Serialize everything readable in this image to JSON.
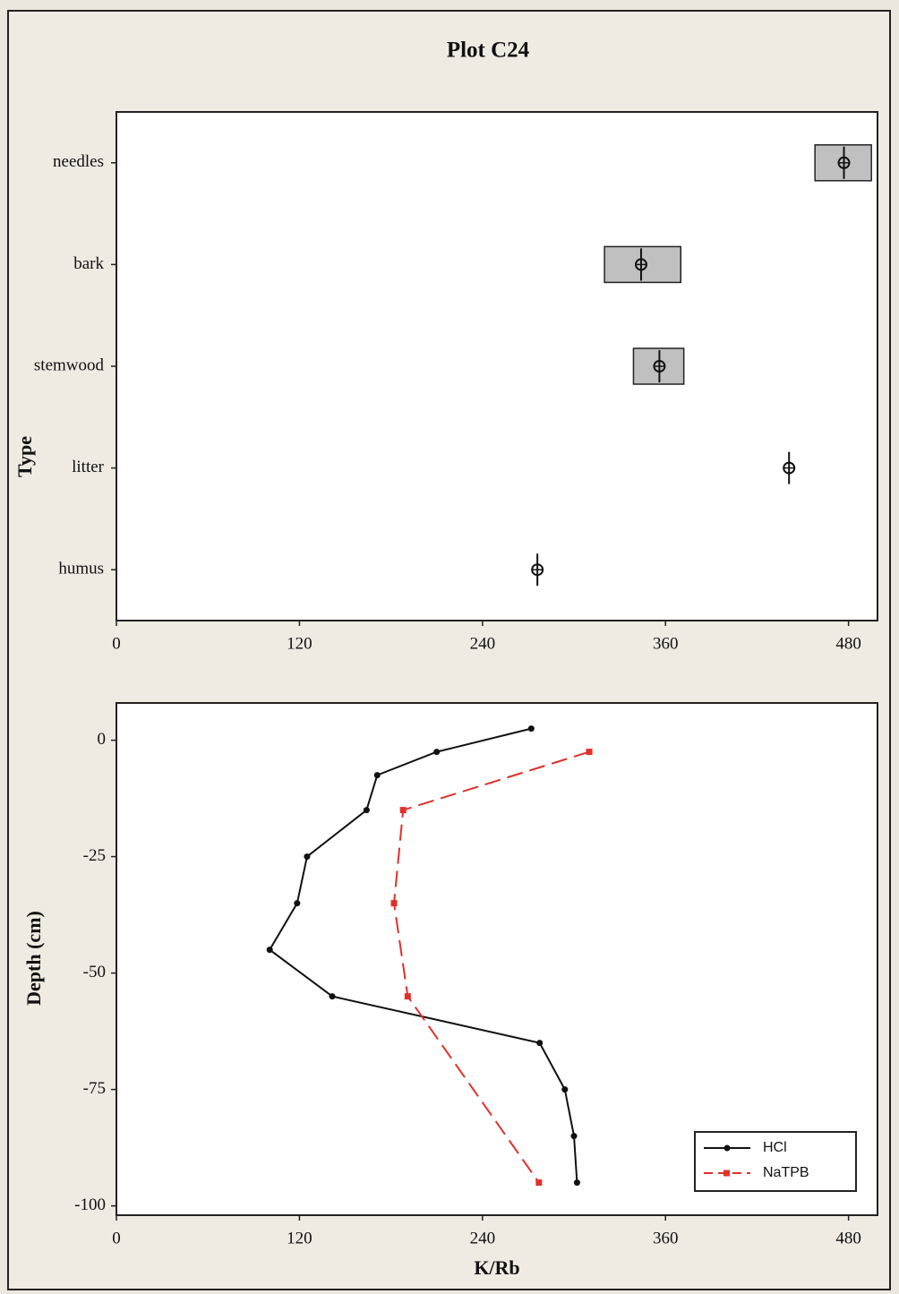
{
  "chart_data": [
    {
      "type": "box",
      "title": "Plot C24",
      "y_label": "Type",
      "categories": [
        "needles",
        "bark",
        "stemwood",
        "litter",
        "humus"
      ],
      "means": [
        477,
        344,
        356,
        441,
        276
      ],
      "lows": [
        458,
        320,
        339,
        null,
        null
      ],
      "highs": [
        495,
        370,
        372,
        null,
        null
      ],
      "color": "#c0c0c0",
      "xlim": [
        0,
        499
      ],
      "xticks": [
        0,
        120,
        240,
        360,
        480
      ]
    },
    {
      "type": "line",
      "x_label": "K/Rb",
      "y_label": "Depth (cm)",
      "series": [
        {
          "name": "HCl",
          "color": "#111111",
          "dashed": false,
          "x": [
            272,
            210,
            171,
            164,
            125,
            118.5,
            100.5,
            141.5,
            277.5,
            294,
            300,
            302
          ],
          "y": [
            2.5,
            -2.5,
            -7.5,
            -15,
            -25,
            -35,
            -45,
            -55,
            -65,
            -75,
            -85,
            -95
          ]
        },
        {
          "name": "NaTPB",
          "color": "#e0302a",
          "dashed": true,
          "x": [
            310,
            188,
            182,
            191,
            277
          ],
          "y": [
            -2.5,
            -15,
            -35,
            -55,
            -95
          ]
        }
      ],
      "xlim": [
        0,
        499
      ],
      "xticks": [
        0,
        120,
        240,
        360,
        480
      ],
      "ylim": [
        -102,
        8
      ],
      "yticks": [
        0,
        -25,
        -50,
        -75,
        -100
      ],
      "legend": "lower right"
    }
  ]
}
